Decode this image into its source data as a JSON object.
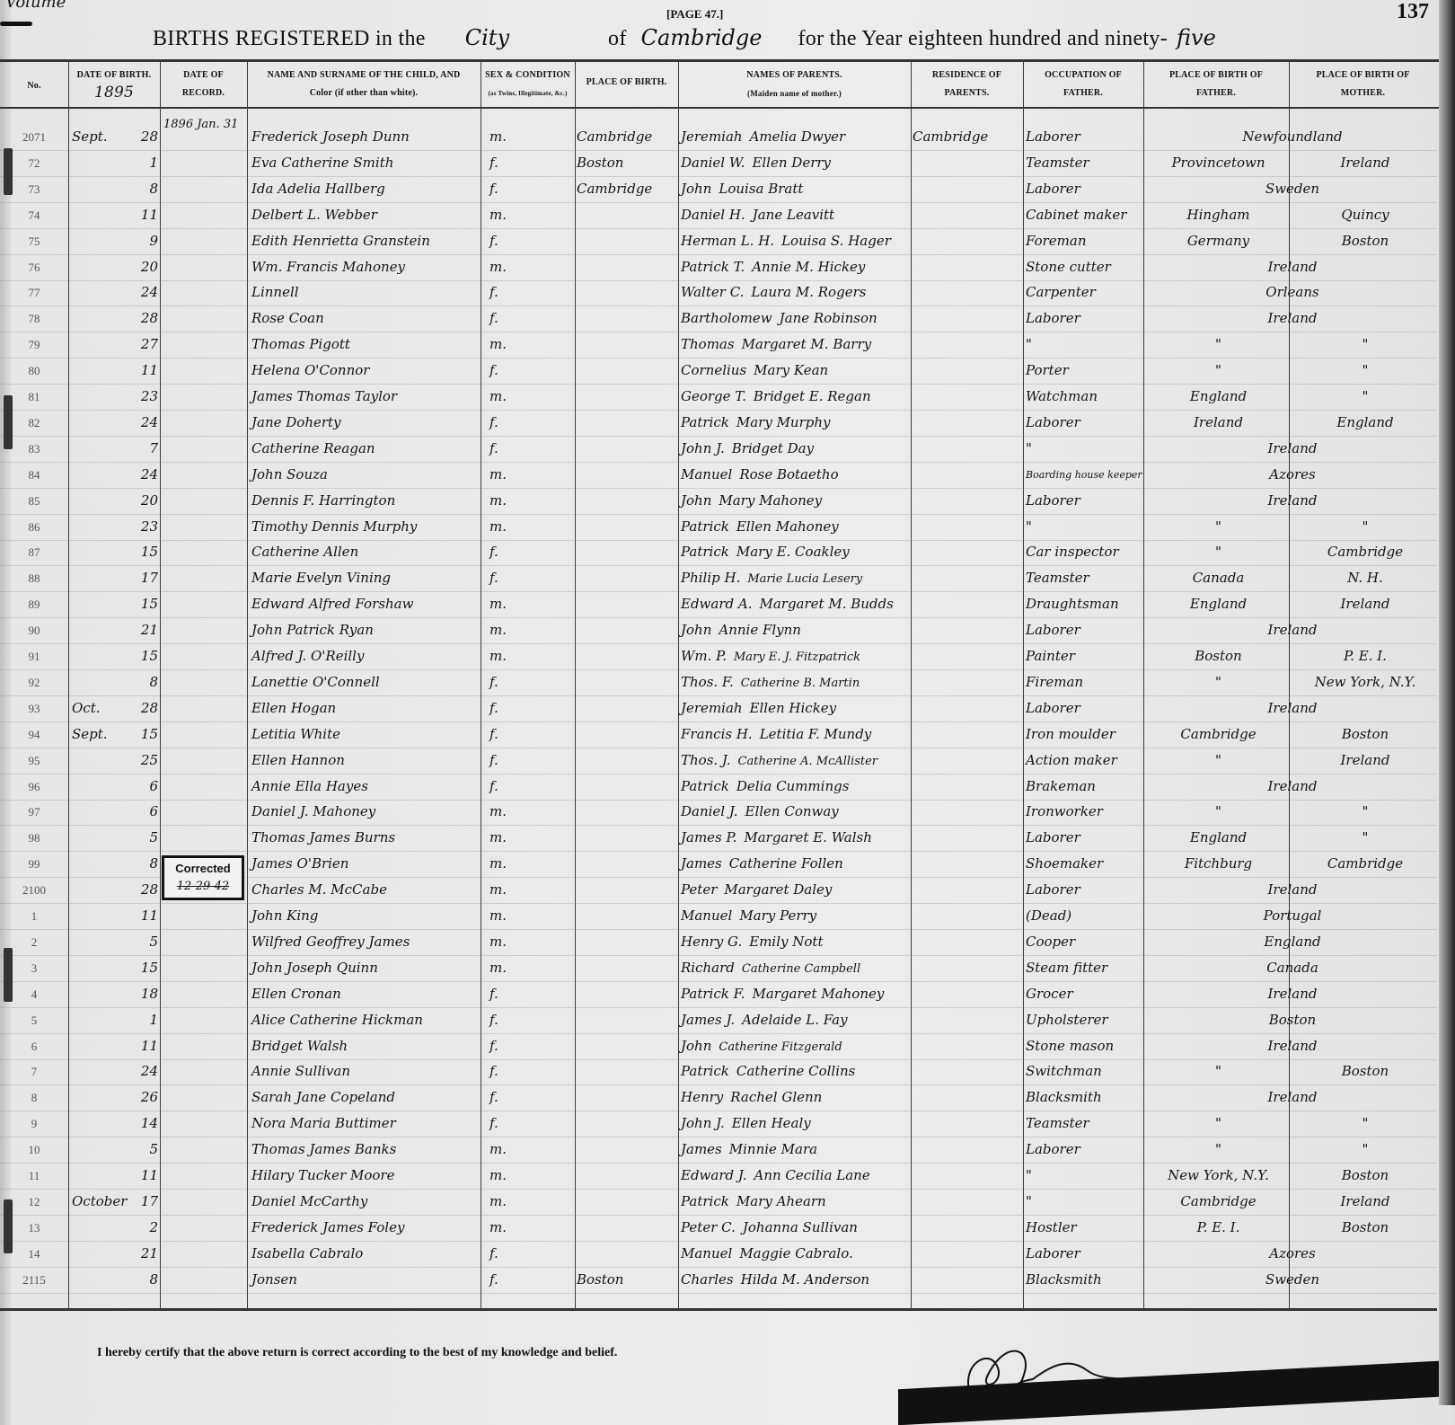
{
  "header": {
    "volume_note": "Volume",
    "page_label": "[PAGE 47.]",
    "page_number": "137",
    "title_prefix": "BIRTHS REGISTERED in the",
    "place_type": "City",
    "of_label": "of",
    "city": "Cambridge",
    "year_prefix": "for the Year eighteen hundred and ninety-",
    "year_suffix": "five"
  },
  "columns": {
    "no": "No.",
    "date_of_birth": "Date of Birth.",
    "date_of_birth_year": "1895",
    "date_of_record_1": "Date of",
    "date_of_record_2": "Record.",
    "name_1": "Name and Surname of the Child, and",
    "name_2": "Color (if other than white).",
    "sex_1": "Sex & Condition",
    "sex_2": "(as Twins, Illegitimate, &c.)",
    "place_of_birth": "Place of Birth.",
    "parents_1": "Names of Parents.",
    "parents_2": "(Maiden name of mother.)",
    "residence_1": "Residence of",
    "residence_2": "Parents.",
    "occupation_1": "Occupation of",
    "occupation_2": "Father.",
    "father_birth_1": "Place of Birth of",
    "father_birth_2": "Father.",
    "mother_birth_1": "Place of Birth of",
    "mother_birth_2": "Mother."
  },
  "rows": [
    {
      "no": "2071",
      "month": "Sept.",
      "day": "28",
      "record": "1896 Jan. 31",
      "name": "Frederick Joseph Dunn",
      "sex": "m.",
      "place": "Cambridge",
      "father": "Jeremiah",
      "mother": "Amelia Dwyer",
      "residence": "Cambridge",
      "occupation": "Laborer",
      "both_birth": "Newfoundland"
    },
    {
      "no": "72",
      "day": "1",
      "name": "Eva Catherine Smith",
      "sex": "f.",
      "place": "Boston",
      "father": "Daniel W.",
      "mother": "Ellen Derry",
      "occupation": "Teamster",
      "father_birth": "Provincetown",
      "mother_birth": "Ireland"
    },
    {
      "no": "73",
      "day": "8",
      "name": "Ida Adelia Hallberg",
      "sex": "f.",
      "place": "Cambridge",
      "father": "John",
      "mother": "Louisa Bratt",
      "occupation": "Laborer",
      "both_birth": "Sweden"
    },
    {
      "no": "74",
      "day": "11",
      "name": "Delbert L. Webber",
      "sex": "m.",
      "father": "Daniel H.",
      "mother": "Jane Leavitt",
      "occupation": "Cabinet maker",
      "father_birth": "Hingham",
      "mother_birth": "Quincy"
    },
    {
      "no": "75",
      "day": "9",
      "name": "Edith Henrietta Granstein",
      "sex": "f.",
      "father": "Herman L. H.",
      "mother": "Louisa S. Hager",
      "occupation": "Foreman",
      "father_birth": "Germany",
      "mother_birth": "Boston"
    },
    {
      "no": "76",
      "day": "20",
      "name": "Wm. Francis Mahoney",
      "sex": "m.",
      "father": "Patrick T.",
      "mother": "Annie M. Hickey",
      "occupation": "Stone cutter",
      "both_birth": "Ireland"
    },
    {
      "no": "77",
      "day": "24",
      "name": "Linnell",
      "sex": "f.",
      "father": "Walter C.",
      "mother": "Laura M. Rogers",
      "occupation": "Carpenter",
      "both_birth": "Orleans"
    },
    {
      "no": "78",
      "day": "28",
      "name": "Rose Coan",
      "sex": "f.",
      "father": "Bartholomew",
      "mother": "Jane Robinson",
      "occupation": "Laborer",
      "both_birth": "Ireland"
    },
    {
      "no": "79",
      "day": "27",
      "name": "Thomas Pigott",
      "sex": "m.",
      "father": "Thomas",
      "mother": "Margaret M. Barry",
      "occupation": "\"",
      "father_birth": "\"",
      "mother_birth": "\""
    },
    {
      "no": "80",
      "day": "11",
      "name": "Helena O'Connor",
      "sex": "f.",
      "father": "Cornelius",
      "mother": "Mary Kean",
      "occupation": "Porter",
      "father_birth": "\"",
      "mother_birth": "\""
    },
    {
      "no": "81",
      "day": "23",
      "name": "James Thomas Taylor",
      "sex": "m.",
      "father": "George T.",
      "mother": "Bridget E. Regan",
      "occupation": "Watchman",
      "father_birth": "England",
      "mother_birth": "\""
    },
    {
      "no": "82",
      "day": "24",
      "name": "Jane Doherty",
      "sex": "f.",
      "father": "Patrick",
      "mother": "Mary Murphy",
      "occupation": "Laborer",
      "father_birth": "Ireland",
      "mother_birth": "England"
    },
    {
      "no": "83",
      "day": "7",
      "name": "Catherine Reagan",
      "sex": "f.",
      "father": "John J.",
      "mother": "Bridget Day",
      "occupation": "\"",
      "both_birth": "Ireland"
    },
    {
      "no": "84",
      "day": "24",
      "name": "John Souza",
      "sex": "m.",
      "father": "Manuel",
      "mother": "Rose Botaetho",
      "occupation": "Boarding house keeper",
      "both_birth": "Azores"
    },
    {
      "no": "85",
      "day": "20",
      "name": "Dennis F. Harrington",
      "sex": "m.",
      "father": "John",
      "mother": "Mary Mahoney",
      "occupation": "Laborer",
      "both_birth": "Ireland"
    },
    {
      "no": "86",
      "day": "23",
      "name": "Timothy Dennis Murphy",
      "sex": "m.",
      "father": "Patrick",
      "mother": "Ellen Mahoney",
      "occupation": "\"",
      "father_birth": "\"",
      "mother_birth": "\""
    },
    {
      "no": "87",
      "day": "15",
      "name": "Catherine Allen",
      "sex": "f.",
      "father": "Patrick",
      "mother": "Mary E. Coakley",
      "occupation": "Car inspector",
      "father_birth": "\"",
      "mother_birth": "Cambridge"
    },
    {
      "no": "88",
      "day": "17",
      "name": "Marie Evelyn Vining",
      "sex": "f.",
      "father": "Philip H.",
      "mother": "Marie Lucia Lesery",
      "occupation": "Teamster",
      "father_birth": "Canada",
      "mother_birth": "N. H."
    },
    {
      "no": "89",
      "day": "15",
      "name": "Edward Alfred Forshaw",
      "sex": "m.",
      "father": "Edward A.",
      "mother": "Margaret M. Budds",
      "occupation": "Draughtsman",
      "father_birth": "England",
      "mother_birth": "Ireland"
    },
    {
      "no": "90",
      "day": "21",
      "name": "John Patrick Ryan",
      "sex": "m.",
      "father": "John",
      "mother": "Annie Flynn",
      "occupation": "Laborer",
      "both_birth": "Ireland"
    },
    {
      "no": "91",
      "day": "15",
      "name": "Alfred J. O'Reilly",
      "sex": "m.",
      "father": "Wm. P.",
      "mother": "Mary E. J. Fitzpatrick",
      "occupation": "Painter",
      "father_birth": "Boston",
      "mother_birth": "P. E. I."
    },
    {
      "no": "92",
      "day": "8",
      "name": "Lanettie O'Connell",
      "sex": "f.",
      "father": "Thos. F.",
      "mother": "Catherine B. Martin",
      "occupation": "Fireman",
      "father_birth": "\"",
      "mother_birth": "New York, N.Y."
    },
    {
      "no": "93",
      "month": "Oct.",
      "day": "28",
      "name": "Ellen Hogan",
      "sex": "f.",
      "father": "Jeremiah",
      "mother": "Ellen Hickey",
      "occupation": "Laborer",
      "both_birth": "Ireland"
    },
    {
      "no": "94",
      "month": "Sept.",
      "day": "15",
      "name": "Letitia White",
      "sex": "f.",
      "father": "Francis H.",
      "mother": "Letitia F. Mundy",
      "occupation": "Iron moulder",
      "father_birth": "Cambridge",
      "mother_birth": "Boston"
    },
    {
      "no": "95",
      "day": "25",
      "name": "Ellen Hannon",
      "sex": "f.",
      "father": "Thos. J.",
      "mother": "Catherine A. McAllister",
      "occupation": "Action maker",
      "father_birth": "\"",
      "mother_birth": "Ireland"
    },
    {
      "no": "96",
      "day": "6",
      "name": "Annie Ella Hayes",
      "sex": "f.",
      "father": "Patrick",
      "mother": "Delia Cummings",
      "occupation": "Brakeman",
      "both_birth": "Ireland"
    },
    {
      "no": "97",
      "day": "6",
      "name": "Daniel J. Mahoney",
      "sex": "m.",
      "father": "Daniel J.",
      "mother": "Ellen Conway",
      "occupation": "Ironworker",
      "father_birth": "\"",
      "mother_birth": "\""
    },
    {
      "no": "98",
      "day": "5",
      "name": "Thomas James Burns",
      "sex": "m.",
      "father": "James P.",
      "mother": "Margaret E. Walsh",
      "occupation": "Laborer",
      "father_birth": "England",
      "mother_birth": "\""
    },
    {
      "no": "99",
      "day": "8",
      "name": "James O'Brien",
      "sex": "m.",
      "father": "James",
      "mother": "Catherine Follen",
      "occupation": "Shoemaker",
      "father_birth": "Fitchburg",
      "mother_birth": "Cambridge"
    },
    {
      "no": "2100",
      "day": "28",
      "name": "Charles M. McCabe",
      "sex": "m.",
      "father": "Peter",
      "mother": "Margaret Daley",
      "occupation": "Laborer",
      "both_birth": "Ireland"
    },
    {
      "no": "1",
      "day": "11",
      "name": "John King",
      "sex": "m.",
      "father": "Manuel",
      "mother": "Mary Perry",
      "occupation": "(Dead)",
      "both_birth": "Portugal"
    },
    {
      "no": "2",
      "day": "5",
      "name": "Wilfred Geoffrey James",
      "sex": "m.",
      "father": "Henry G.",
      "mother": "Emily Nott",
      "occupation": "Cooper",
      "both_birth": "England"
    },
    {
      "no": "3",
      "day": "15",
      "name": "John Joseph Quinn",
      "sex": "m.",
      "father": "Richard",
      "mother": "Catherine Campbell",
      "occupation": "Steam fitter",
      "both_birth": "Canada"
    },
    {
      "no": "4",
      "day": "18",
      "name": "Ellen Cronan",
      "sex": "f.",
      "father": "Patrick F.",
      "mother": "Margaret Mahoney",
      "occupation": "Grocer",
      "both_birth": "Ireland"
    },
    {
      "no": "5",
      "day": "1",
      "name": "Alice Catherine Hickman",
      "sex": "f.",
      "father": "James J.",
      "mother": "Adelaide L. Fay",
      "occupation": "Upholsterer",
      "both_birth": "Boston"
    },
    {
      "no": "6",
      "day": "11",
      "name": "Bridget Walsh",
      "sex": "f.",
      "father": "John",
      "mother": "Catherine Fitzgerald",
      "occupation": "Stone mason",
      "both_birth": "Ireland"
    },
    {
      "no": "7",
      "day": "24",
      "name": "Annie Sullivan",
      "sex": "f.",
      "father": "Patrick",
      "mother": "Catherine Collins",
      "occupation": "Switchman",
      "father_birth": "\"",
      "mother_birth": "Boston"
    },
    {
      "no": "8",
      "day": "26",
      "name": "Sarah Jane Copeland",
      "sex": "f.",
      "father": "Henry",
      "mother": "Rachel Glenn",
      "occupation": "Blacksmith",
      "both_birth": "Ireland"
    },
    {
      "no": "9",
      "day": "14",
      "name": "Nora Maria Buttimer",
      "sex": "f.",
      "father": "John J.",
      "mother": "Ellen Healy",
      "occupation": "Teamster",
      "father_birth": "\"",
      "mother_birth": "\""
    },
    {
      "no": "10",
      "day": "5",
      "name": "Thomas James Banks",
      "sex": "m.",
      "father": "James",
      "mother": "Minnie Mara",
      "occupation": "Laborer",
      "father_birth": "\"",
      "mother_birth": "\""
    },
    {
      "no": "11",
      "day": "11",
      "name": "Hilary Tucker Moore",
      "sex": "m.",
      "father": "Edward J.",
      "mother": "Ann Cecilia Lane",
      "occupation": "\"",
      "father_birth": "New York, N.Y.",
      "mother_birth": "Boston"
    },
    {
      "no": "12",
      "month": "October",
      "day": "17",
      "name": "Daniel McCarthy",
      "sex": "m.",
      "father": "Patrick",
      "mother": "Mary Ahearn",
      "occupation": "\"",
      "father_birth": "Cambridge",
      "mother_birth": "Ireland"
    },
    {
      "no": "13",
      "day": "2",
      "name": "Frederick James Foley",
      "sex": "m.",
      "father": "Peter C.",
      "mother": "Johanna Sullivan",
      "occupation": "Hostler",
      "father_birth": "P. E. I.",
      "mother_birth": "Boston"
    },
    {
      "no": "14",
      "day": "21",
      "name": "Isabella Cabralo",
      "sex": "f.",
      "father": "Manuel",
      "mother": "Maggie Cabralo.",
      "occupation": "Laborer",
      "both_birth": "Azores"
    },
    {
      "no": "2115",
      "day": "8",
      "name": "Jonsen",
      "sex": "f.",
      "place": "Boston",
      "father": "Charles",
      "mother": "Hilda M. Anderson",
      "occupation": "Blacksmith",
      "both_birth": "Sweden"
    }
  ],
  "stamp": {
    "label": "Corrected",
    "date": "12-29-42"
  },
  "footer": {
    "certification": "I hereby certify that the above return is correct according to the best of my knowledge and belief."
  }
}
